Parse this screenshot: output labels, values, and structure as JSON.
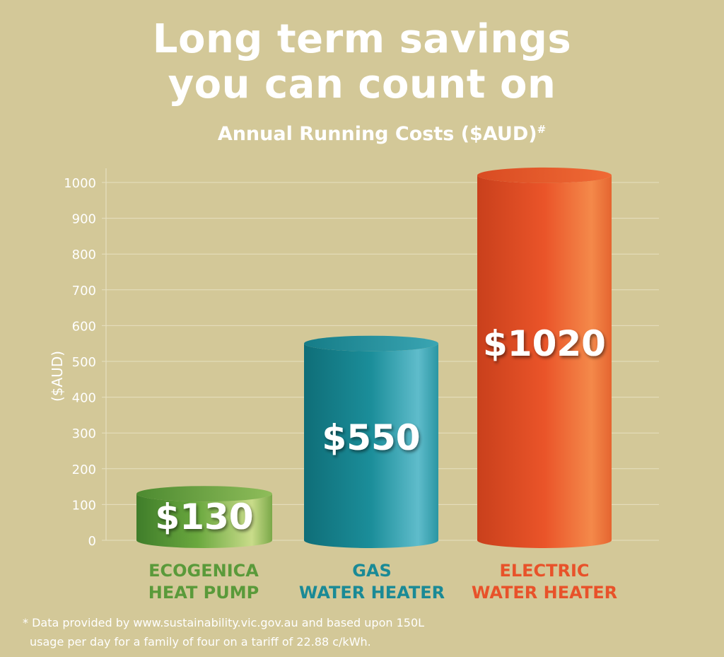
{
  "title_line1": "Long term savings",
  "title_line2": "you can count on",
  "subtitle": "Annual Running Costs ($AUD)",
  "subtitle_mark": "#",
  "footnote_line1": "* Data provided by www.sustainability.vic.gov.au and based upon 150L",
  "footnote_line2": "usage per day for a family of four on a tariff of 22.88 c/kWh.",
  "colors": {
    "background": "#d3c898",
    "heat_pump": "#5a9a3a",
    "gas": "#1a8a96",
    "electric": "#e8522a"
  },
  "chart_data": {
    "type": "bar",
    "title": "Annual Running Costs ($AUD)#",
    "ylabel": "($AUD)",
    "ylim": [
      0,
      1000
    ],
    "yticks": [
      "0",
      "100",
      "200",
      "300",
      "400",
      "500",
      "600",
      "700",
      "800",
      "900",
      "1000"
    ],
    "grid": true,
    "categories": [
      {
        "line1": "ECOGENICA",
        "line2": "HEAT PUMP"
      },
      {
        "line1": "GAS",
        "line2": "WATER HEATER"
      },
      {
        "line1": "ELECTRIC",
        "line2": "WATER HEATER"
      }
    ],
    "values": [
      130,
      550,
      1020
    ],
    "value_labels": [
      "$130",
      "$550",
      "$1020"
    ]
  }
}
